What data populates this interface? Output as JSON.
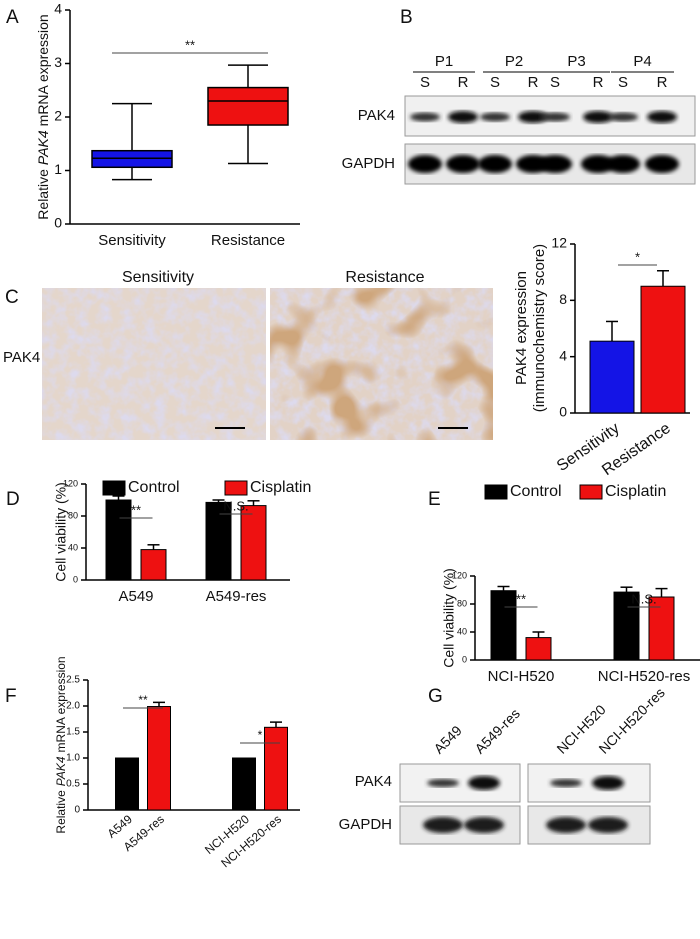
{
  "panel_labels": [
    "A",
    "B",
    "C",
    "D",
    "E",
    "F",
    "G"
  ],
  "chart_data": [
    {
      "type": "box",
      "ylabel": [
        "Relative",
        "PAK4",
        "mRNA expression"
      ],
      "categories": [
        "Sensitivity",
        "Resistance"
      ],
      "boxes": [
        {
          "min": 0.83,
          "q1": 1.06,
          "median": 1.23,
          "q3": 1.37,
          "max": 2.25,
          "color": "#1414e6"
        },
        {
          "min": 1.13,
          "q1": 1.85,
          "median": 2.3,
          "q3": 2.55,
          "max": 2.97,
          "color": "#ee1111"
        }
      ],
      "ylim": [
        0,
        4
      ],
      "yticks": [
        0,
        1,
        2,
        3,
        4
      ],
      "annotations": [
        "**"
      ]
    },
    {
      "type": "bar",
      "ylabel": [
        "PAK4 expression",
        "(immunochemistry score)"
      ],
      "categories": [
        "Sensitivity",
        "Resistance"
      ],
      "values": [
        5.1,
        9.0
      ],
      "errors": [
        1.4,
        1.1
      ],
      "colors": [
        "#1414e6",
        "#ee1111"
      ],
      "ylim": [
        0,
        12
      ],
      "yticks": [
        0,
        4,
        8,
        12
      ],
      "annotations": [
        "*"
      ]
    },
    {
      "type": "grouped_bar",
      "ylabel": [
        "Cell viability (%)"
      ],
      "categories": [
        "A549",
        "A549-res"
      ],
      "series": [
        {
          "name": "Control",
          "color": "#000000",
          "values": [
            100,
            97
          ],
          "errors": [
            5,
            3
          ]
        },
        {
          "name": "Cisplatin",
          "color": "#ee1111",
          "values": [
            38,
            93
          ],
          "errors": [
            6,
            6
          ]
        }
      ],
      "ylim": [
        0,
        120
      ],
      "yticks": [
        0,
        40,
        80,
        120
      ],
      "annotations": [
        "**",
        "N.S."
      ]
    },
    {
      "type": "grouped_bar",
      "ylabel": [
        "Cell viability (%)"
      ],
      "categories": [
        "NCI-H520",
        "NCI-H520-res"
      ],
      "series": [
        {
          "name": "Control",
          "color": "#000000",
          "values": [
            99,
            97
          ],
          "errors": [
            6,
            7
          ]
        },
        {
          "name": "Cisplatin",
          "color": "#ee1111",
          "values": [
            32,
            90
          ],
          "errors": [
            8,
            12
          ]
        }
      ],
      "ylim": [
        0,
        120
      ],
      "yticks": [
        0,
        40,
        80,
        120
      ],
      "annotations": [
        "**",
        "N.S."
      ]
    },
    {
      "type": "bar",
      "ylabel": [
        "Relative",
        "PAK4",
        "mRNA expression"
      ],
      "categories": [
        "A549",
        "A549-res",
        "NCI-H520",
        "NCI-H520-res"
      ],
      "values": [
        1,
        1.99,
        1,
        1.59
      ],
      "errors": [
        null,
        0.08,
        null,
        0.1
      ],
      "colors": [
        "#000000",
        "#ee1111",
        "#000000",
        "#ee1111"
      ],
      "ylim": [
        0,
        2.5
      ],
      "yticks": [
        0,
        0.5,
        {
          "value": 1,
          "label": "1.0"
        },
        1.5,
        {
          "value": 2,
          "label": "2.0"
        },
        2.5
      ],
      "annotations": [
        "**",
        "*"
      ]
    }
  ],
  "blot_b": {
    "patients": [
      "P1",
      "P2",
      "P3",
      "P4"
    ],
    "lanes": [
      "S",
      "R"
    ],
    "rows": [
      "PAK4",
      "GAPDH"
    ]
  },
  "histology_c": {
    "columns": [
      "Sensitivity",
      "Resistance"
    ],
    "row": "PAK4"
  },
  "blot_g": {
    "lanes": [
      "A549",
      "A549-res",
      "NCI-H520",
      "NCI-H520-res"
    ],
    "rows": [
      "PAK4",
      "GAPDH"
    ]
  }
}
